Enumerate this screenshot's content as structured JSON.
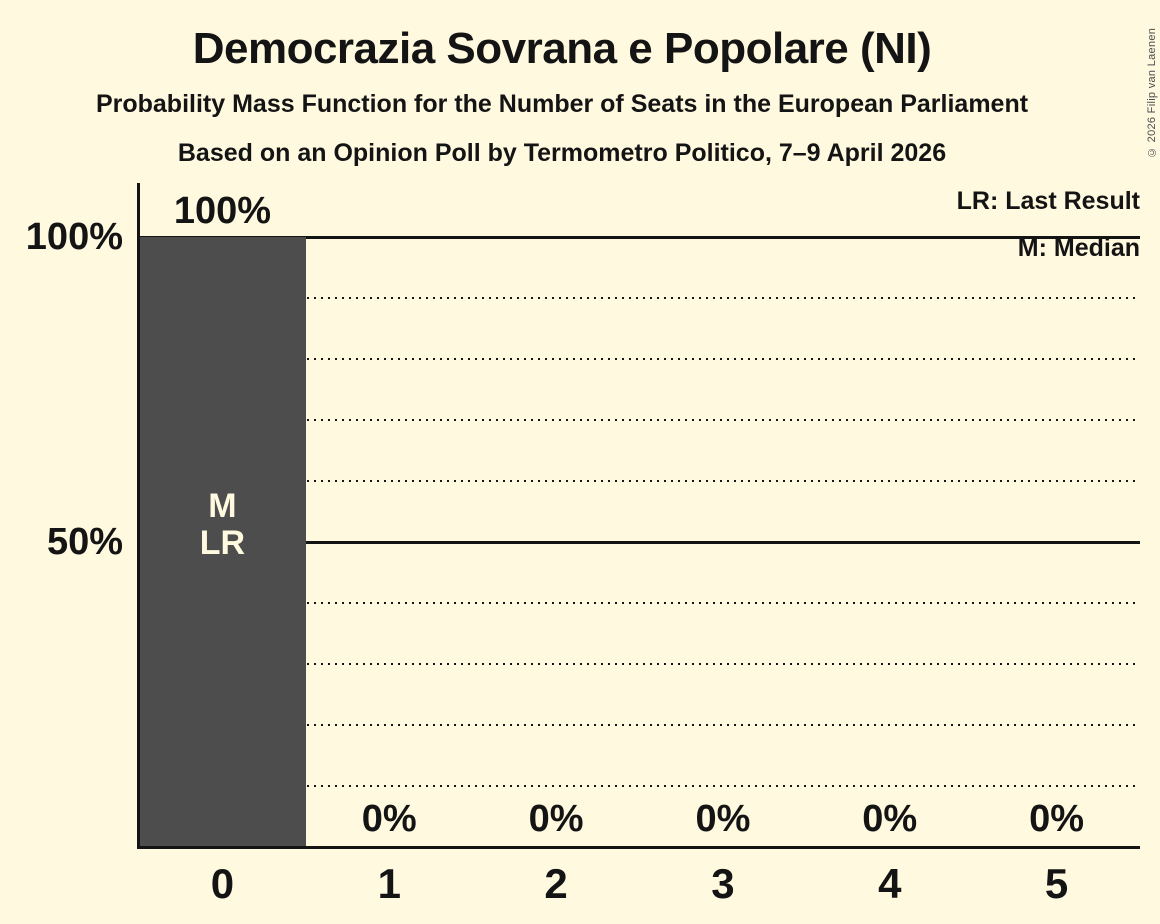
{
  "header": {
    "title": "Democrazia Sovrana e Popolare (NI)",
    "subtitle1": "Probability Mass Function for the Number of Seats in the European Parliament",
    "subtitle2": "Based on an Opinion Poll by Termometro Politico, 7–9 April 2026"
  },
  "legend": {
    "last_result": "LR: Last Result",
    "median": "M: Median"
  },
  "copyright": "© 2026 Filip van Laenen",
  "chart_data": {
    "type": "bar",
    "title": "Democrazia Sovrana e Popolare (NI)",
    "xlabel": "",
    "ylabel": "",
    "categories": [
      "0",
      "1",
      "2",
      "3",
      "4",
      "5"
    ],
    "values": [
      100,
      0,
      0,
      0,
      0,
      0
    ],
    "value_labels": [
      "100%",
      "0%",
      "0%",
      "0%",
      "0%",
      "0%"
    ],
    "ylim": [
      0,
      100
    ],
    "yticks": [
      {
        "pct": 100,
        "label": "100%"
      },
      {
        "pct": 50,
        "label": "50%"
      }
    ],
    "gridlines": {
      "solid_pcts": [
        100,
        50
      ],
      "dotted_pcts": [
        90,
        80,
        70,
        60,
        40,
        30,
        20,
        10
      ]
    },
    "legend_position": "top-right",
    "bar_annotations": [
      {
        "category": "0",
        "lines": [
          "M",
          "LR"
        ]
      }
    ]
  },
  "colors": {
    "background": "#FFF9E0",
    "bar": "#4D4D4D",
    "text": "#141414",
    "grid": "#141414",
    "bar_label": "#FFF9E0",
    "copyright": "#4D4D4D"
  }
}
